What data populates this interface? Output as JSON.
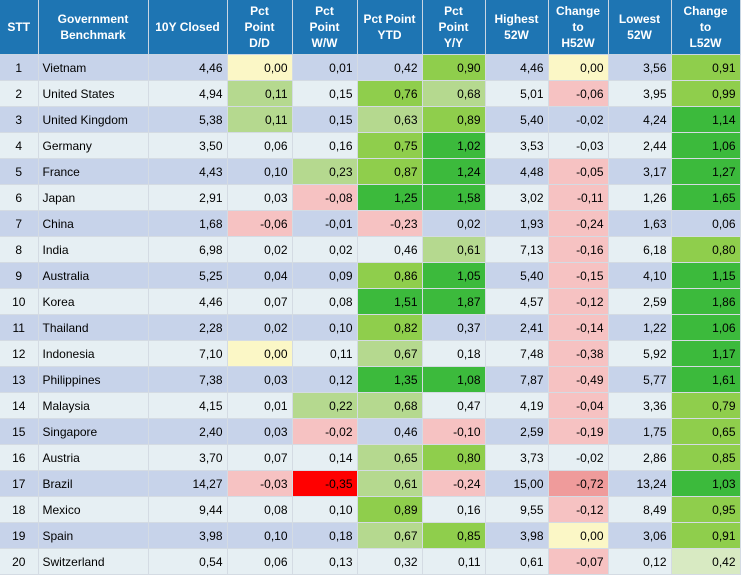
{
  "headers": [
    "STT",
    "Government Benchmark",
    "10Y Closed",
    "Pct Point D/D",
    "Pct Point W/W",
    "Pct Point YTD",
    "Pct Point Y/Y",
    "Highest 52W",
    "Change to H52W",
    "Lowest 52W",
    "Change to L52W"
  ],
  "header_lines": [
    [
      "STT"
    ],
    [
      "Government",
      "Benchmark"
    ],
    [
      "10Y Closed"
    ],
    [
      "Pct",
      "Point",
      "D/D"
    ],
    [
      "Pct",
      "Point",
      "W/W"
    ],
    [
      "Pct Point",
      "YTD"
    ],
    [
      "Pct",
      "Point",
      "Y/Y"
    ],
    [
      "Highest",
      "52W"
    ],
    [
      "Change",
      "to",
      "H52W"
    ],
    [
      "Lowest",
      "52W"
    ],
    [
      "Change",
      "to",
      "L52W"
    ]
  ],
  "colors": {
    "header_bg": "#1e75b3",
    "row_odd": "#c7d3ea",
    "row_even": "#e6eff3",
    "neutral_yellow": "#fbf7c6",
    "pos_1": "#d8eac2",
    "pos_2": "#b5d98f",
    "pos_3": "#8fce4c",
    "pos_4": "#3cba3c",
    "neg_1": "#f6c2c2",
    "neg_2": "#ef9b9b",
    "neg_3": "#ff0000"
  },
  "rows": [
    {
      "stt": "1",
      "name": "Vietnam",
      "closed": "4,46",
      "dd": "0,00",
      "ww": "0,01",
      "ytd": "0,42",
      "yy": "0,90",
      "h52": "4,46",
      "ch52": "0,00",
      "l52": "3,56",
      "cl52": "0,91"
    },
    {
      "stt": "2",
      "name": "United States",
      "closed": "4,94",
      "dd": "0,11",
      "ww": "0,15",
      "ytd": "0,76",
      "yy": "0,68",
      "h52": "5,01",
      "ch52": "-0,06",
      "l52": "3,95",
      "cl52": "0,99"
    },
    {
      "stt": "3",
      "name": "United Kingdom",
      "closed": "5,38",
      "dd": "0,11",
      "ww": "0,15",
      "ytd": "0,63",
      "yy": "0,89",
      "h52": "5,40",
      "ch52": "-0,02",
      "l52": "4,24",
      "cl52": "1,14"
    },
    {
      "stt": "4",
      "name": "Germany",
      "closed": "3,50",
      "dd": "0,06",
      "ww": "0,16",
      "ytd": "0,75",
      "yy": "1,02",
      "h52": "3,53",
      "ch52": "-0,03",
      "l52": "2,44",
      "cl52": "1,06"
    },
    {
      "stt": "5",
      "name": "France",
      "closed": "4,43",
      "dd": "0,10",
      "ww": "0,23",
      "ytd": "0,87",
      "yy": "1,24",
      "h52": "4,48",
      "ch52": "-0,05",
      "l52": "3,17",
      "cl52": "1,27"
    },
    {
      "stt": "6",
      "name": "Japan",
      "closed": "2,91",
      "dd": "0,03",
      "ww": "-0,08",
      "ytd": "1,25",
      "yy": "1,58",
      "h52": "3,02",
      "ch52": "-0,11",
      "l52": "1,26",
      "cl52": "1,65"
    },
    {
      "stt": "7",
      "name": "China",
      "closed": "1,68",
      "dd": "-0,06",
      "ww": "-0,01",
      "ytd": "-0,23",
      "yy": "0,02",
      "h52": "1,93",
      "ch52": "-0,24",
      "l52": "1,63",
      "cl52": "0,06"
    },
    {
      "stt": "8",
      "name": "India",
      "closed": "6,98",
      "dd": "0,02",
      "ww": "0,02",
      "ytd": "0,46",
      "yy": "0,61",
      "h52": "7,13",
      "ch52": "-0,16",
      "l52": "6,18",
      "cl52": "0,80"
    },
    {
      "stt": "9",
      "name": "Australia",
      "closed": "5,25",
      "dd": "0,04",
      "ww": "0,09",
      "ytd": "0,86",
      "yy": "1,05",
      "h52": "5,40",
      "ch52": "-0,15",
      "l52": "4,10",
      "cl52": "1,15"
    },
    {
      "stt": "10",
      "name": "Korea",
      "closed": "4,46",
      "dd": "0,07",
      "ww": "0,08",
      "ytd": "1,51",
      "yy": "1,87",
      "h52": "4,57",
      "ch52": "-0,12",
      "l52": "2,59",
      "cl52": "1,86"
    },
    {
      "stt": "11",
      "name": "Thailand",
      "closed": "2,28",
      "dd": "0,02",
      "ww": "0,10",
      "ytd": "0,82",
      "yy": "0,37",
      "h52": "2,41",
      "ch52": "-0,14",
      "l52": "1,22",
      "cl52": "1,06"
    },
    {
      "stt": "12",
      "name": "Indonesia",
      "closed": "7,10",
      "dd": "0,00",
      "ww": "0,11",
      "ytd": "0,67",
      "yy": "0,18",
      "h52": "7,48",
      "ch52": "-0,38",
      "l52": "5,92",
      "cl52": "1,17"
    },
    {
      "stt": "13",
      "name": "Philippines",
      "closed": "7,38",
      "dd": "0,03",
      "ww": "0,12",
      "ytd": "1,35",
      "yy": "1,08",
      "h52": "7,87",
      "ch52": "-0,49",
      "l52": "5,77",
      "cl52": "1,61"
    },
    {
      "stt": "14",
      "name": "Malaysia",
      "closed": "4,15",
      "dd": "0,01",
      "ww": "0,22",
      "ytd": "0,68",
      "yy": "0,47",
      "h52": "4,19",
      "ch52": "-0,04",
      "l52": "3,36",
      "cl52": "0,79"
    },
    {
      "stt": "15",
      "name": "Singapore",
      "closed": "2,40",
      "dd": "0,03",
      "ww": "-0,02",
      "ytd": "0,46",
      "yy": "-0,10",
      "h52": "2,59",
      "ch52": "-0,19",
      "l52": "1,75",
      "cl52": "0,65"
    },
    {
      "stt": "16",
      "name": "Austria",
      "closed": "3,70",
      "dd": "0,07",
      "ww": "0,14",
      "ytd": "0,65",
      "yy": "0,80",
      "h52": "3,73",
      "ch52": "-0,02",
      "l52": "2,86",
      "cl52": "0,85"
    },
    {
      "stt": "17",
      "name": "Brazil",
      "closed": "14,27",
      "dd": "-0,03",
      "ww": "-0,35",
      "ytd": "0,61",
      "yy": "-0,24",
      "h52": "15,00",
      "ch52": "-0,72",
      "l52": "13,24",
      "cl52": "1,03"
    },
    {
      "stt": "18",
      "name": "Mexico",
      "closed": "9,44",
      "dd": "0,08",
      "ww": "0,10",
      "ytd": "0,89",
      "yy": "0,16",
      "h52": "9,55",
      "ch52": "-0,12",
      "l52": "8,49",
      "cl52": "0,95"
    },
    {
      "stt": "19",
      "name": "Spain",
      "closed": "3,98",
      "dd": "0,10",
      "ww": "0,18",
      "ytd": "0,67",
      "yy": "0,85",
      "h52": "3,98",
      "ch52": "0,00",
      "l52": "3,06",
      "cl52": "0,91"
    },
    {
      "stt": "20",
      "name": "Switzerland",
      "closed": "0,54",
      "dd": "0,06",
      "ww": "0,13",
      "ytd": "0,32",
      "yy": "0,11",
      "h52": "0,61",
      "ch52": "-0,07",
      "l52": "0,12",
      "cl52": "0,42"
    }
  ]
}
